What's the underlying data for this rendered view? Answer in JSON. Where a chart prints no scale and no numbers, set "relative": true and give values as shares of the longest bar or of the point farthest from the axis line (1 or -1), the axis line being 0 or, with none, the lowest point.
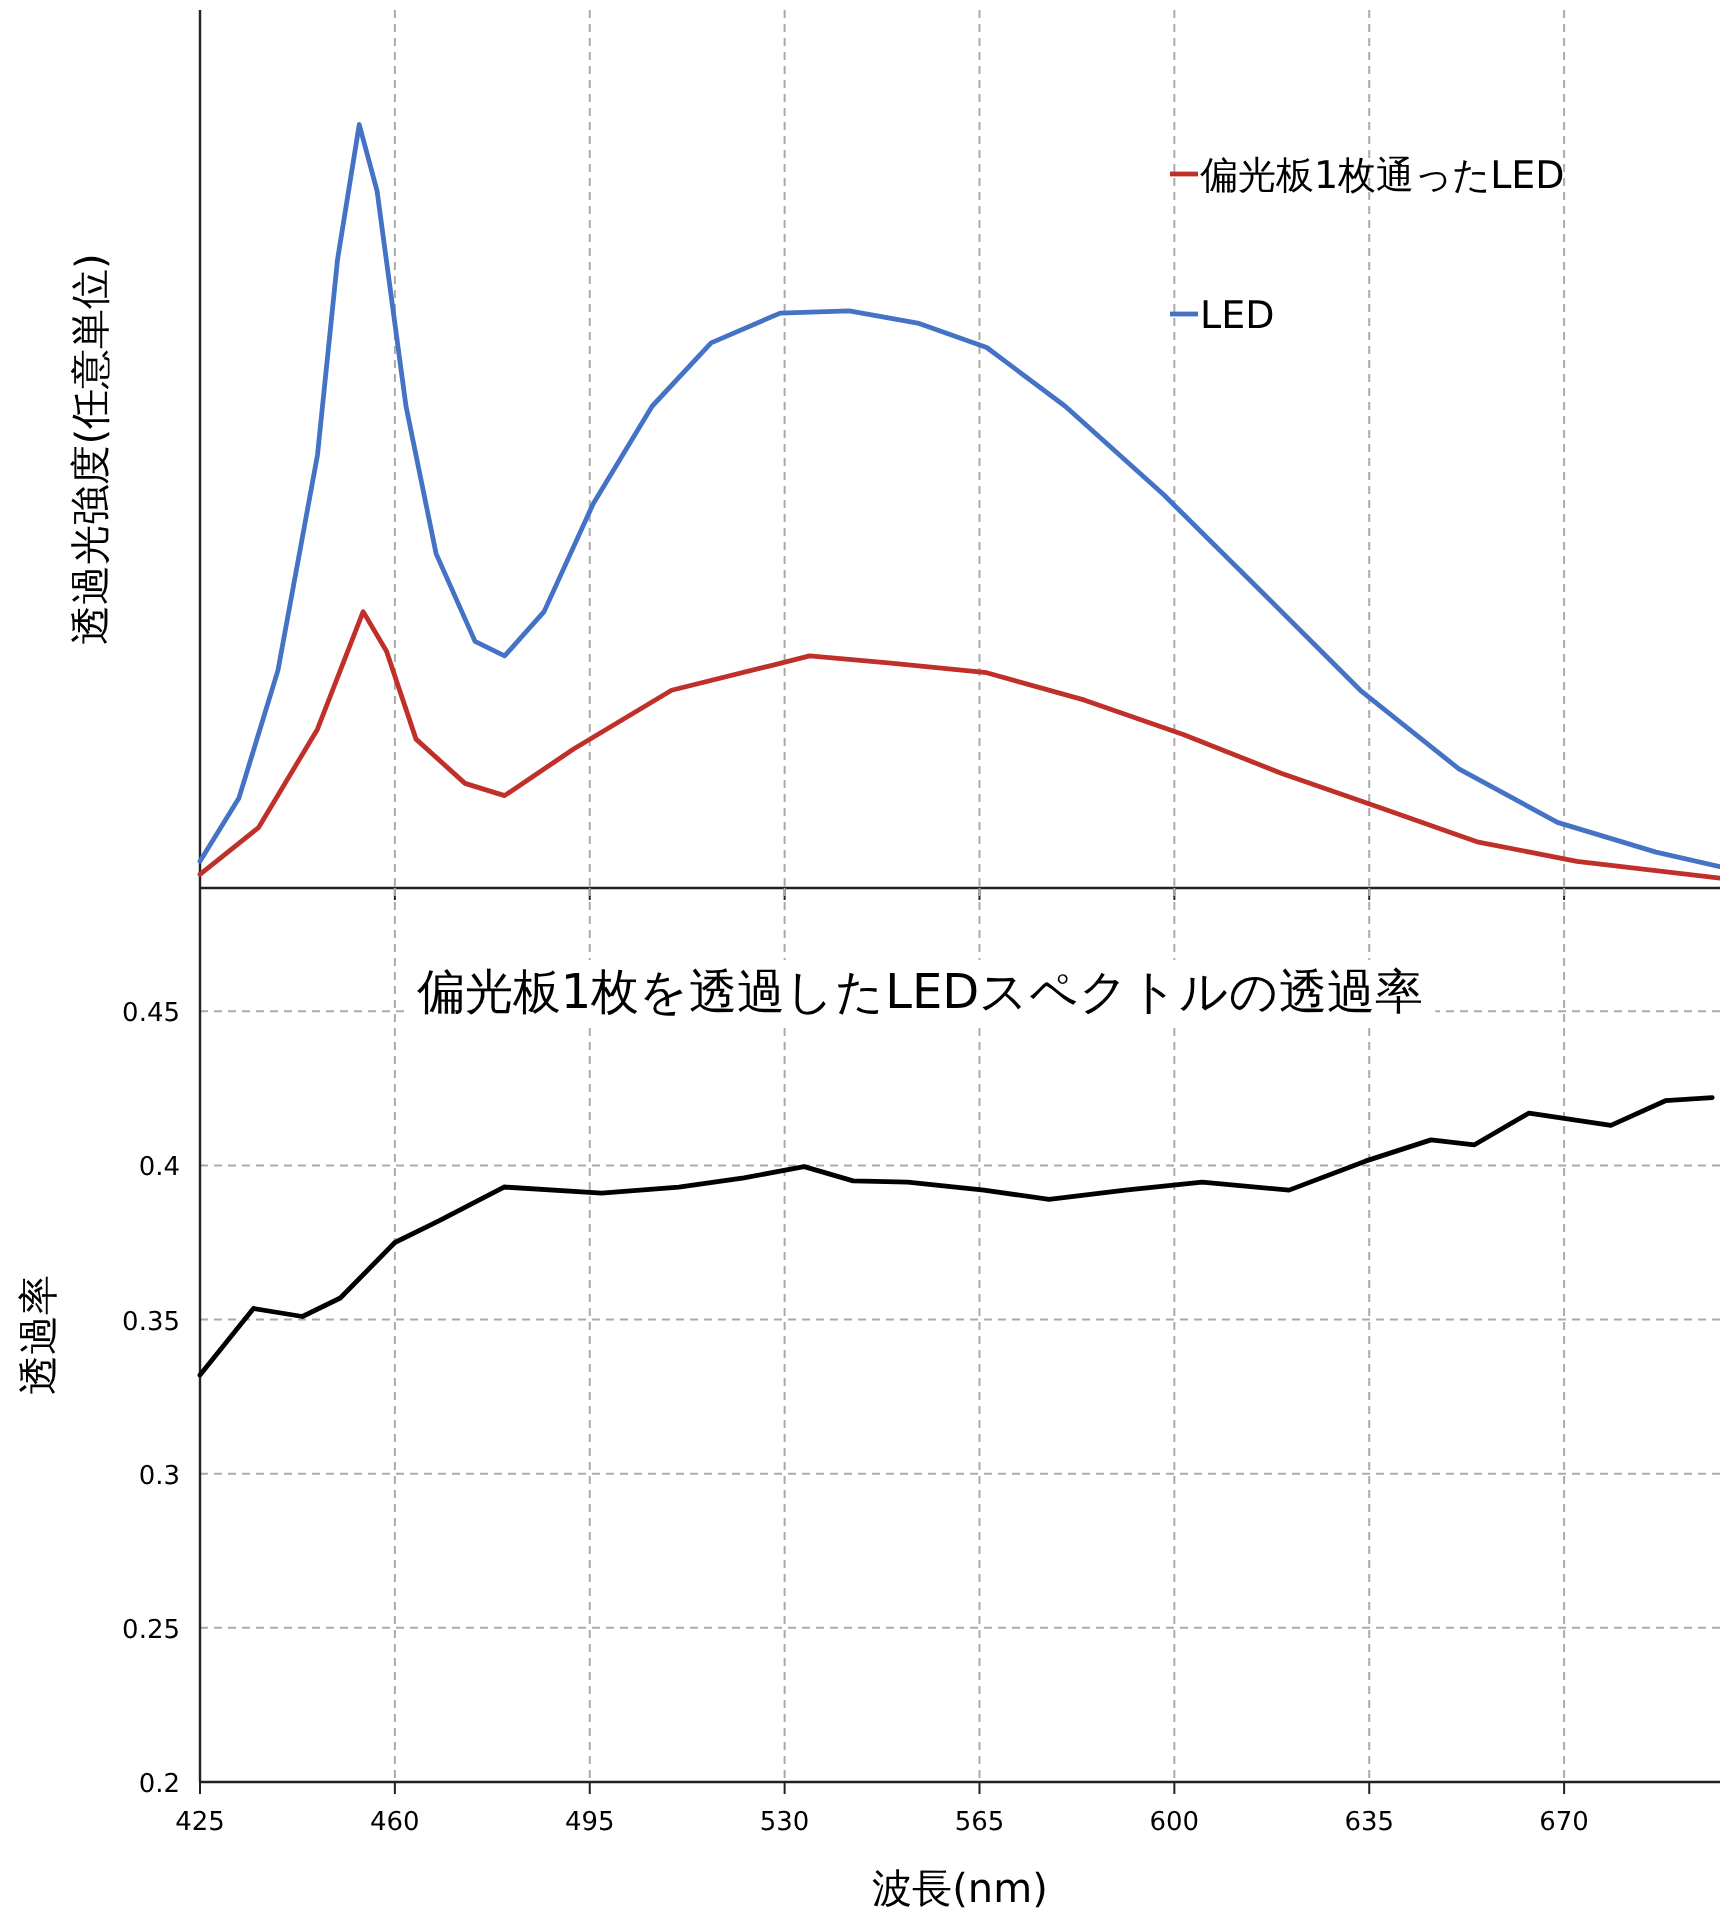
{
  "chart_data": [
    {
      "type": "line",
      "ylabel": "透過光強度(任意単位)",
      "relative": true,
      "xlim": [
        425,
        698
      ],
      "xticks": [
        425,
        460,
        495,
        530,
        565,
        600,
        635,
        670
      ],
      "tick_labels": false,
      "grid": "x",
      "legend": "top right",
      "series": [
        {
          "name": "偏光板1枚通ったLED",
          "color": "#c0302a",
          "x": [
            425,
            435.5,
            446.1,
            454.3,
            458.5,
            463.8,
            472.6,
            479.7,
            492.1,
            509.7,
            527.4,
            534.5,
            548.6,
            566.3,
            583.9,
            601.6,
            619.3,
            637,
            654.6,
            672.3,
            698
          ],
          "values": [
            0.018,
            0.079,
            0.208,
            0.362,
            0.31,
            0.195,
            0.137,
            0.121,
            0.182,
            0.259,
            0.291,
            0.304,
            0.295,
            0.282,
            0.246,
            0.201,
            0.15,
            0.105,
            0.06,
            0.035,
            0.013
          ]
        },
        {
          "name": "LED",
          "color": "#4472c4",
          "x": [
            425,
            432,
            439,
            446.1,
            449.7,
            453.6,
            456.8,
            462,
            467.4,
            474.4,
            479.7,
            486.8,
            495.6,
            506.2,
            516.8,
            529.2,
            541.6,
            553.9,
            566.3,
            580.4,
            598.1,
            615.8,
            633.4,
            651.1,
            668.8,
            686.5,
            698
          ],
          "values": [
            0.035,
            0.118,
            0.285,
            0.567,
            0.823,
            1.0,
            0.913,
            0.631,
            0.438,
            0.323,
            0.304,
            0.362,
            0.503,
            0.631,
            0.714,
            0.753,
            0.756,
            0.74,
            0.708,
            0.631,
            0.515,
            0.387,
            0.259,
            0.156,
            0.086,
            0.047,
            0.028
          ]
        }
      ]
    },
    {
      "type": "line",
      "title": "偏光板1枚を透過したLEDスペクトルの透過率",
      "xlabel": "波長(nm)",
      "ylabel": "透過率",
      "xlim": [
        425,
        698
      ],
      "xticks": [
        425,
        460,
        495,
        530,
        565,
        600,
        635,
        670
      ],
      "ylim": [
        0.2,
        0.49
      ],
      "yticks": [
        0.2,
        0.25,
        0.3,
        0.35,
        0.4,
        0.45
      ],
      "grid": true,
      "series": [
        {
          "color": "#000000",
          "x": [
            425,
            434.6,
            443.4,
            450.2,
            460,
            467.9,
            479.6,
            497.1,
            511,
            522.7,
            533.5,
            542.3,
            552.1,
            565.8,
            577.5,
            591.2,
            605,
            620.6,
            634.3,
            646.1,
            653.9,
            663.7,
            678.4,
            688.2,
            696.6
          ],
          "values": [
            0.332,
            0.3536,
            0.351,
            0.357,
            0.375,
            0.382,
            0.393,
            0.391,
            0.393,
            0.396,
            0.3996,
            0.395,
            0.3946,
            0.392,
            0.389,
            0.392,
            0.3946,
            0.392,
            0.4014,
            0.4083,
            0.4067,
            0.417,
            0.413,
            0.421,
            0.422
          ]
        }
      ]
    }
  ]
}
